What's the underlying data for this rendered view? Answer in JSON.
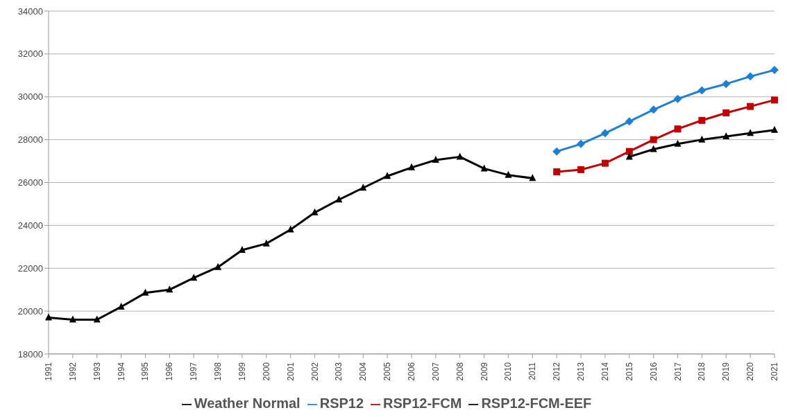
{
  "chart_data": {
    "type": "line",
    "categories": [
      "1991",
      "1992",
      "1993",
      "1994",
      "1995",
      "1996",
      "1997",
      "1998",
      "1999",
      "2000",
      "2001",
      "2002",
      "2003",
      "2004",
      "2005",
      "2006",
      "2007",
      "2008",
      "2009",
      "2010",
      "2011",
      "2012",
      "2013",
      "2014",
      "2015",
      "2016",
      "2017",
      "2018",
      "2019",
      "2020",
      "2021"
    ],
    "series": [
      {
        "name": "Weather Normal",
        "color": "#000000",
        "marker": "triangle",
        "values": [
          19700,
          19600,
          19600,
          20200,
          20850,
          21000,
          21550,
          22050,
          22850,
          23150,
          23800,
          24600,
          25200,
          25750,
          26300,
          26700,
          27050,
          27200,
          26650,
          26350,
          26200,
          null,
          null,
          null,
          null,
          null,
          null,
          null,
          null,
          null,
          null
        ]
      },
      {
        "name": "RSP12",
        "color": "#1f7fd0",
        "marker": "diamond",
        "values": [
          null,
          null,
          null,
          null,
          null,
          null,
          null,
          null,
          null,
          null,
          null,
          null,
          null,
          null,
          null,
          null,
          null,
          null,
          null,
          null,
          null,
          27450,
          27800,
          28300,
          28850,
          29400,
          29900,
          30300,
          30600,
          30950,
          31250
        ]
      },
      {
        "name": "RSP12-FCM",
        "color": "#c00000",
        "marker": "square",
        "values": [
          null,
          null,
          null,
          null,
          null,
          null,
          null,
          null,
          null,
          null,
          null,
          null,
          null,
          null,
          null,
          null,
          null,
          null,
          null,
          null,
          null,
          26500,
          26600,
          26900,
          27450,
          28000,
          28500,
          28900,
          29250,
          29550,
          29850
        ]
      },
      {
        "name": "RSP12-FCM-EEF",
        "color": "#000000",
        "marker": "triangle",
        "values": [
          null,
          null,
          null,
          null,
          null,
          null,
          null,
          null,
          null,
          null,
          null,
          null,
          null,
          null,
          null,
          null,
          null,
          null,
          null,
          null,
          null,
          null,
          null,
          null,
          27200,
          27550,
          27800,
          28000,
          28150,
          28300,
          28450
        ]
      }
    ],
    "ylim": [
      18000,
      34000
    ],
    "yticks": [
      18000,
      20000,
      22000,
      24000,
      26000,
      28000,
      30000,
      32000,
      34000
    ],
    "grid": "y",
    "legend": "bottom",
    "line_style": "solid"
  }
}
